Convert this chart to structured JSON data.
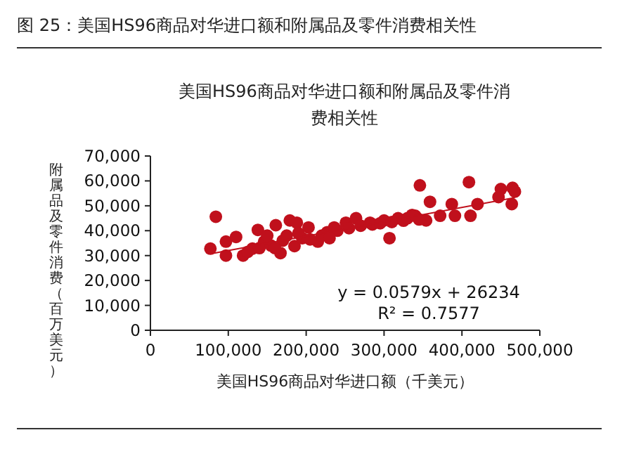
{
  "chart_data": {
    "type": "scatter",
    "title": "美国HS96商品对华进口额和附属品及零件消费相关性",
    "xlabel": "美国HS96商品对华进口额（千美元）",
    "ylabel": "附属品及零件消费（百万美元）",
    "annotations": [
      "图 25：美国HS96商品对华进口额和附属品及零件消费相关性",
      "y = 0.0579x + 26234",
      "R² = 0.7577"
    ],
    "xlim": [
      0,
      500000
    ],
    "xticks": [
      {
        "value": 0,
        "label": "0"
      },
      {
        "value": 100000,
        "label": "100,000"
      },
      {
        "value": 200000,
        "label": "200,000"
      },
      {
        "value": 300000,
        "label": "300,000"
      },
      {
        "value": 400000,
        "label": "400,000"
      },
      {
        "value": 500000,
        "label": "500,000"
      }
    ],
    "ylim": [
      0,
      70000
    ],
    "yticks": [
      {
        "value": 0,
        "label": "0"
      },
      {
        "value": 10000,
        "label": "10,000"
      },
      {
        "value": 20000,
        "label": "20,000"
      },
      {
        "value": 30000,
        "label": "30,000"
      },
      {
        "value": 40000,
        "label": "40,000"
      },
      {
        "value": 50000,
        "label": "50,000"
      },
      {
        "value": 60000,
        "label": "60,000"
      },
      {
        "value": 70000,
        "label": "70,000"
      }
    ],
    "grid": false,
    "series": [
      {
        "marker": "circle",
        "color": "#c0101c",
        "x": [
          77000,
          84000,
          97000,
          97000,
          110000,
          119000,
          131000,
          138000,
          146000,
          161000,
          167000,
          179000,
          188000,
          185000,
          203000,
          215000,
          227000,
          236000,
          251000,
          264000,
          282000,
          300000,
          307000,
          318000,
          336000,
          346000,
          354000,
          359000,
          372000,
          387000,
          391000,
          409000,
          411000,
          420000,
          447000,
          450000,
          464000,
          465000,
          468000,
          125000,
          140000,
          155000,
          170000,
          175000,
          195000,
          205000,
          220000,
          240000,
          255000,
          270000,
          285000,
          295000,
          310000,
          325000,
          330000,
          340000,
          345000,
          150000,
          160000,
          190000,
          230000
        ],
        "values": [
          32800,
          45600,
          30000,
          35600,
          37500,
          30000,
          32800,
          40300,
          35600,
          42200,
          31000,
          44100,
          43200,
          33800,
          41300,
          35600,
          39400,
          41300,
          43200,
          45000,
          43200,
          44100,
          37000,
          45000,
          46300,
          58200,
          44100,
          51600,
          46000,
          50700,
          46000,
          59500,
          46000,
          50700,
          53500,
          56700,
          50700,
          57200,
          55700,
          31500,
          33000,
          34000,
          36000,
          38000,
          37000,
          36500,
          38000,
          40000,
          41000,
          42000,
          42500,
          43000,
          43500,
          44000,
          45000,
          46000,
          44500,
          38000,
          33000,
          39000,
          37000
        ]
      },
      {
        "type": "line",
        "marker": "none",
        "color": "#c0101c",
        "x": [
          77000,
          468000
        ],
        "values": [
          30700,
          53300
        ]
      }
    ]
  }
}
